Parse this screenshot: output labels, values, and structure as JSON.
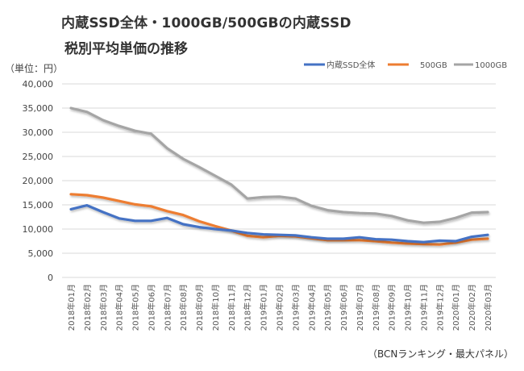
{
  "chart_data": {
    "type": "line",
    "title": "内蔵SSD全体・1000GB/500GBの内蔵SSD",
    "subtitle": "税別平均単価の推移",
    "ylabel": "（単位：円）",
    "xlabel": "",
    "source": "（BCNランキング・最大パネル）",
    "ylim": [
      0,
      40000
    ],
    "yticks": [
      0,
      5000,
      10000,
      15000,
      20000,
      25000,
      30000,
      35000,
      40000
    ],
    "ytick_labels": [
      "0",
      "5,000",
      "10,000",
      "15,000",
      "20,000",
      "25,000",
      "30,000",
      "35,000",
      "40,000"
    ],
    "grid": true,
    "legend_position": "top-right",
    "categories": [
      "2018年01月",
      "2018年02月",
      "2018年03月",
      "2018年04月",
      "2018年05月",
      "2018年06月",
      "2018年07月",
      "2018年08月",
      "2018年09月",
      "2018年10月",
      "2018年11月",
      "2018年12月",
      "2019年01月",
      "2019年02月",
      "2019年03月",
      "2019年04月",
      "2019年05月",
      "2019年06月",
      "2019年07月",
      "2019年08月",
      "2019年09月",
      "2019年10月",
      "2019年11月",
      "2019年12月",
      "2020年01月",
      "2020年02月",
      "2020年03月"
    ],
    "series": [
      {
        "name": "内蔵SSD全体",
        "color": "#4472C4",
        "values": [
          14100,
          14900,
          13500,
          12200,
          11700,
          11700,
          12300,
          11000,
          10400,
          10000,
          9700,
          9200,
          8900,
          8800,
          8700,
          8300,
          8000,
          8000,
          8300,
          7900,
          7800,
          7500,
          7300,
          7600,
          7500,
          8400,
          8800
        ]
      },
      {
        "name": "500GB",
        "color": "#ED7D31",
        "values": [
          17200,
          17000,
          16500,
          15800,
          15100,
          14700,
          13700,
          12900,
          11600,
          10600,
          9700,
          8600,
          8300,
          8600,
          8500,
          8100,
          7700,
          7700,
          7700,
          7500,
          7200,
          7000,
          6900,
          6800,
          7200,
          7800,
          8000
        ]
      },
      {
        "name": "1000GB",
        "color": "#A5A5A5",
        "values": [
          35000,
          34200,
          32500,
          31300,
          30300,
          29700,
          26700,
          24500,
          22800,
          21000,
          19200,
          16300,
          16600,
          16700,
          16300,
          14800,
          13900,
          13500,
          13300,
          13200,
          12700,
          11800,
          11300,
          11500,
          12300,
          13400,
          13500
        ]
      }
    ]
  }
}
